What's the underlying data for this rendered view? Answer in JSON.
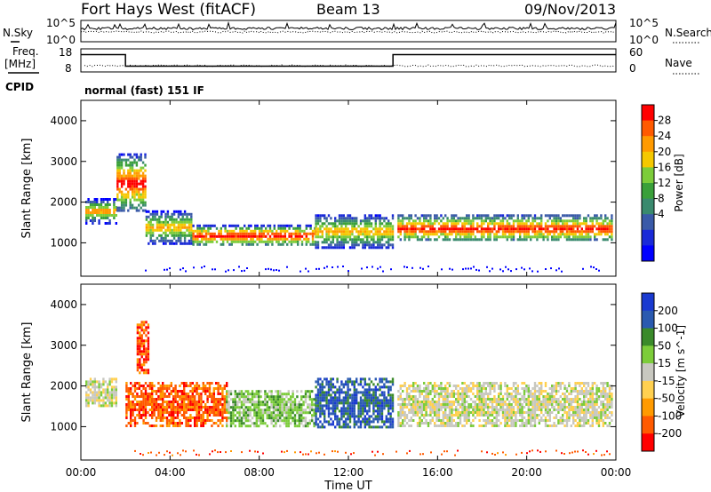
{
  "header": {
    "station": "Fort Hays West (fitACF)",
    "beam": "Beam 13",
    "date": "09/Nov/2013"
  },
  "sky_panel": {
    "label_left": "N.Sky",
    "label_right": "N.Search",
    "ticks_left": [
      "10^5",
      "10^0"
    ],
    "ticks_right": [
      "10^5",
      "10^0"
    ]
  },
  "freq_panel": {
    "label_left_1": "Freq.",
    "label_left_2": "[MHz]",
    "label_right": "Nave",
    "ticks_left": [
      "18",
      "8"
    ],
    "ticks_right": [
      "60",
      "0"
    ],
    "freq_steps": [
      {
        "t": 0.0,
        "mhz": 15.5
      },
      {
        "t": 2.0,
        "mhz": 10.5
      },
      {
        "t": 14.0,
        "mhz": 15.5
      },
      {
        "t": 24.0,
        "mhz": 15.5
      }
    ]
  },
  "cpid": {
    "label": "CPID",
    "text": "normal (fast) 151 IF"
  },
  "x_axis": {
    "label": "Time UT",
    "ticks": [
      "00:00",
      "04:00",
      "08:00",
      "12:00",
      "16:00",
      "20:00",
      "00:00"
    ],
    "range_hours": [
      0,
      24
    ]
  },
  "chart_data": [
    {
      "type": "heatmap",
      "parameter": "Power",
      "ylabel": "Slant Range [km]",
      "yticks": [
        "4000",
        "3000",
        "2000",
        "1000"
      ],
      "ylim_km": [
        180,
        4500
      ],
      "colorbar": {
        "label": "Power [dB]",
        "tick_labels": [
          "28",
          "24",
          "20",
          "16",
          "12",
          "8",
          "4"
        ],
        "colors": [
          "#ff0000",
          "#ff5a00",
          "#ff9a00",
          "#f5c800",
          "#7ccc3a",
          "#3aa03a",
          "#3a8a6e",
          "#3a5aa8",
          "#1a2ad8",
          "#0000ff"
        ]
      },
      "echo_bands": [
        {
          "t_start": 0.2,
          "t_end": 1.6,
          "range_km": [
            1500,
            2100
          ],
          "level": "medium"
        },
        {
          "t_start": 1.6,
          "t_end": 2.9,
          "range_km": [
            1800,
            3200
          ],
          "level": "high"
        },
        {
          "t_start": 2.9,
          "t_end": 5.0,
          "range_km": [
            1000,
            1800
          ],
          "level": "medium"
        },
        {
          "t_start": 5.0,
          "t_end": 10.5,
          "range_km": [
            950,
            1450
          ],
          "level": "high"
        },
        {
          "t_start": 10.5,
          "t_end": 14.0,
          "range_km": [
            900,
            1700
          ],
          "level": "medium"
        },
        {
          "t_start": 14.2,
          "t_end": 23.8,
          "range_km": [
            1050,
            1700
          ],
          "level": "high"
        }
      ]
    },
    {
      "type": "heatmap",
      "parameter": "Velocity",
      "ylabel": "Slant Range [km]",
      "yticks": [
        "4000",
        "3000",
        "2000",
        "1000"
      ],
      "ylim_km": [
        180,
        4500
      ],
      "colorbar": {
        "label": "Velocity [m s^-1]",
        "tick_labels": [
          "200",
          "100",
          "50",
          "15",
          "-15",
          "-50",
          "-100",
          "-200"
        ],
        "colors": [
          "#1a3ad0",
          "#2a5ab0",
          "#3a8a2a",
          "#7ccc3a",
          "#c8c8c0",
          "#ffd050",
          "#ff9a00",
          "#ff5a00",
          "#ff0000"
        ]
      },
      "echo_bands": [
        {
          "t_start": 0.2,
          "t_end": 1.6,
          "range_km": [
            1500,
            2200
          ],
          "class": "low"
        },
        {
          "t_start": 2.5,
          "t_end": 3.0,
          "range_km": [
            2300,
            3600
          ],
          "class": "neg-high"
        },
        {
          "t_start": 2.0,
          "t_end": 6.5,
          "range_km": [
            1000,
            2100
          ],
          "class": "neg-mid"
        },
        {
          "t_start": 6.5,
          "t_end": 10.5,
          "range_km": [
            1000,
            1900
          ],
          "class": "pos-mid"
        },
        {
          "t_start": 10.5,
          "t_end": 14.0,
          "range_km": [
            1000,
            2200
          ],
          "class": "pos-high"
        },
        {
          "t_start": 14.2,
          "t_end": 23.8,
          "range_km": [
            1000,
            2100
          ],
          "class": "low"
        }
      ]
    }
  ]
}
